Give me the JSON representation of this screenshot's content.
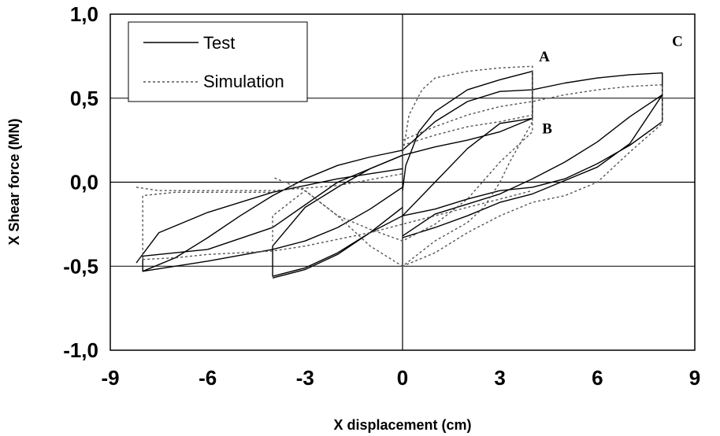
{
  "chart_data": {
    "type": "line",
    "title": "",
    "xlabel": "X displacement (cm)",
    "ylabel": "X Shear force (MN)",
    "xlim": [
      -9,
      9
    ],
    "ylim": [
      -1.0,
      1.0
    ],
    "x_ticks": [
      -9,
      -6,
      -3,
      0,
      3,
      6,
      9
    ],
    "x_tick_labels": [
      "-9",
      "-6",
      "-3",
      "0",
      "3",
      "6",
      "9"
    ],
    "y_ticks": [
      1.0,
      0.5,
      0.0,
      -0.5,
      -1.0
    ],
    "y_tick_labels": [
      "1,0",
      "0,5",
      "0,0",
      "-0,5",
      "-1,0"
    ],
    "grid": "horizontal",
    "legend": {
      "position": "top-left",
      "entries": [
        "Test",
        "Simulation"
      ]
    },
    "annotations": [
      {
        "text": "A",
        "x": 4.2,
        "y": 0.72
      },
      {
        "text": "B",
        "x": 4.3,
        "y": 0.29
      },
      {
        "text": "C",
        "x": 8.3,
        "y": 0.81
      }
    ],
    "series": [
      {
        "name": "Test",
        "style": "solid",
        "color": "#000000",
        "paths": [
          [
            [
              0,
              -0.05
            ],
            [
              0.1,
              0.1
            ],
            [
              0.5,
              0.3
            ],
            [
              1,
              0.42
            ],
            [
              2,
              0.55
            ],
            [
              3,
              0.61
            ],
            [
              4,
              0.66
            ],
            [
              4,
              0.38
            ],
            [
              3,
              0.3
            ],
            [
              2,
              0.25
            ],
            [
              1,
              0.21
            ],
            [
              0,
              0.16
            ],
            [
              -1,
              0.08
            ],
            [
              -2,
              -0.03
            ],
            [
              -3,
              -0.15
            ],
            [
              -4,
              -0.38
            ],
            [
              -4,
              -0.56
            ],
            [
              -3,
              -0.51
            ],
            [
              -2,
              -0.42
            ],
            [
              -1,
              -0.3
            ],
            [
              0,
              -0.15
            ]
          ],
          [
            [
              0,
              0.19
            ],
            [
              1,
              0.36
            ],
            [
              2,
              0.48
            ],
            [
              3,
              0.54
            ],
            [
              4,
              0.55
            ],
            [
              5,
              0.59
            ],
            [
              6,
              0.62
            ],
            [
              7,
              0.64
            ],
            [
              8,
              0.65
            ],
            [
              8,
              0.52
            ],
            [
              7,
              0.39
            ],
            [
              6,
              0.24
            ],
            [
              5,
              0.12
            ],
            [
              4,
              0.02
            ],
            [
              3,
              -0.07
            ],
            [
              2,
              -0.13
            ],
            [
              1,
              -0.19
            ],
            [
              0,
              -0.32
            ]
          ],
          [
            [
              0,
              -0.33
            ],
            [
              0.5,
              -0.3
            ],
            [
              1,
              -0.27
            ],
            [
              2,
              -0.2
            ],
            [
              3,
              -0.12
            ],
            [
              4,
              -0.07
            ],
            [
              5,
              0.01
            ],
            [
              6,
              0.09
            ],
            [
              7,
              0.23
            ],
            [
              8,
              0.52
            ],
            [
              8,
              0.36
            ],
            [
              7,
              0.22
            ],
            [
              6,
              0.11
            ],
            [
              5,
              0.02
            ],
            [
              4,
              -0.03
            ],
            [
              3,
              -0.05
            ],
            [
              2,
              -0.1
            ],
            [
              1,
              -0.16
            ],
            [
              0,
              -0.2
            ]
          ],
          [
            [
              -4,
              -0.57
            ],
            [
              -3,
              -0.52
            ],
            [
              -2,
              -0.43
            ],
            [
              -1,
              -0.3
            ],
            [
              0,
              -0.2
            ],
            [
              1,
              0.0
            ],
            [
              2,
              0.2
            ],
            [
              3,
              0.35
            ],
            [
              4,
              0.38
            ]
          ],
          [
            [
              0,
              0.16
            ],
            [
              -2,
              0.0
            ],
            [
              -4,
              -0.27
            ],
            [
              -6,
              -0.4
            ],
            [
              -7,
              -0.42
            ],
            [
              -8,
              -0.44
            ],
            [
              -8,
              -0.53
            ],
            [
              -6,
              -0.47
            ],
            [
              -4,
              -0.4
            ],
            [
              -3,
              -0.35
            ],
            [
              -2,
              -0.27
            ],
            [
              -1,
              -0.16
            ],
            [
              0,
              -0.03
            ]
          ],
          [
            [
              -8,
              -0.53
            ],
            [
              -7,
              -0.45
            ],
            [
              -6,
              -0.33
            ],
            [
              -5,
              -0.2
            ],
            [
              -4,
              -0.08
            ],
            [
              -3,
              0.02
            ],
            [
              -2,
              0.1
            ],
            [
              -1,
              0.15
            ],
            [
              0,
              0.19
            ]
          ],
          [
            [
              -8.2,
              -0.48
            ],
            [
              -7.5,
              -0.3
            ],
            [
              -6,
              -0.18
            ],
            [
              -4,
              -0.06
            ],
            [
              -2,
              0.02
            ],
            [
              0,
              0.08
            ]
          ]
        ]
      },
      {
        "name": "Simulation",
        "style": "dotted",
        "color": "#555555",
        "paths": [
          [
            [
              0,
              0.16
            ],
            [
              0.2,
              0.4
            ],
            [
              0.6,
              0.55
            ],
            [
              1,
              0.62
            ],
            [
              2,
              0.66
            ],
            [
              3,
              0.68
            ],
            [
              4,
              0.69
            ],
            [
              4,
              0.36
            ],
            [
              3.3,
              0.12
            ],
            [
              3,
              0.0
            ],
            [
              2.5,
              -0.15
            ],
            [
              2,
              -0.24
            ],
            [
              1,
              -0.35
            ],
            [
              0,
              -0.5
            ],
            [
              -1,
              -0.38
            ],
            [
              -2,
              -0.2
            ],
            [
              -3,
              -0.05
            ],
            [
              -4,
              -0.2
            ],
            [
              -4,
              -0.35
            ]
          ],
          [
            [
              0,
              0.25
            ],
            [
              1,
              0.33
            ],
            [
              2,
              0.4
            ],
            [
              3,
              0.45
            ],
            [
              4,
              0.48
            ],
            [
              5,
              0.52
            ],
            [
              6,
              0.55
            ],
            [
              7,
              0.57
            ],
            [
              8,
              0.58
            ],
            [
              8,
              0.35
            ],
            [
              7,
              0.18
            ],
            [
              6,
              0.0
            ],
            [
              5,
              -0.08
            ],
            [
              4,
              -0.12
            ],
            [
              3,
              -0.2
            ],
            [
              2,
              -0.3
            ],
            [
              1,
              -0.42
            ],
            [
              0,
              -0.5
            ]
          ],
          [
            [
              -8.2,
              -0.03
            ],
            [
              -7.5,
              -0.05
            ],
            [
              -6,
              -0.05
            ],
            [
              -4,
              -0.05
            ],
            [
              -2,
              -0.02
            ],
            [
              0,
              0.05
            ]
          ],
          [
            [
              -8,
              -0.46
            ],
            [
              -7,
              -0.45
            ],
            [
              -6,
              -0.43
            ],
            [
              -5,
              -0.42
            ],
            [
              -4,
              -0.41
            ],
            [
              -3,
              -0.38
            ],
            [
              -2,
              -0.34
            ],
            [
              -1,
              -0.3
            ],
            [
              0,
              -0.25
            ],
            [
              1,
              -0.2
            ],
            [
              2,
              -0.15
            ],
            [
              3,
              -0.1
            ],
            [
              4,
              -0.05
            ]
          ],
          [
            [
              -8,
              -0.46
            ],
            [
              -8,
              -0.08
            ],
            [
              -7,
              -0.06
            ],
            [
              -6,
              -0.06
            ],
            [
              -4,
              -0.06
            ]
          ],
          [
            [
              0,
              0.22
            ],
            [
              1,
              0.28
            ],
            [
              2,
              0.33
            ],
            [
              3,
              0.36
            ],
            [
              4,
              0.4
            ],
            [
              4,
              0.3
            ],
            [
              3,
              0.12
            ],
            [
              2,
              -0.1
            ],
            [
              1,
              -0.25
            ],
            [
              0,
              -0.35
            ],
            [
              -1,
              -0.28
            ],
            [
              -2,
              -0.2
            ],
            [
              -3,
              -0.05
            ],
            [
              -4,
              0.03
            ]
          ]
        ]
      }
    ]
  }
}
